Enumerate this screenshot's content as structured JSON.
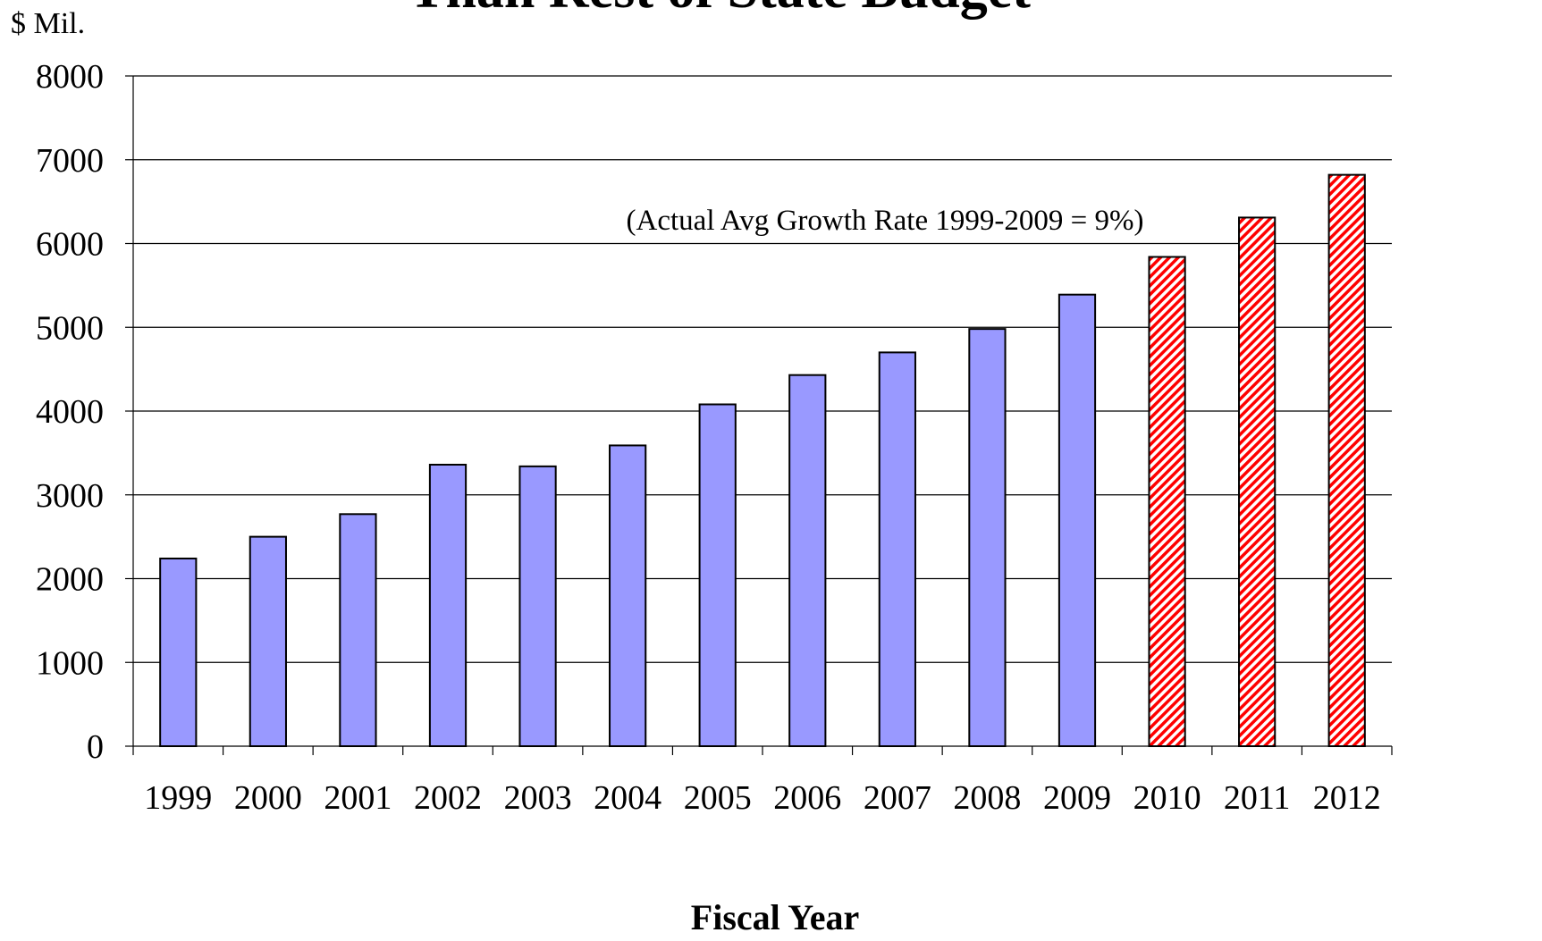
{
  "chart_data": {
    "type": "bar",
    "title": "Than Rest of State Budget",
    "y_unit_label": "$ Mil.",
    "xlabel": "Fiscal Year",
    "ylabel": "",
    "ylim": [
      0,
      8000
    ],
    "y_ticks": [
      0,
      1000,
      2000,
      3000,
      4000,
      5000,
      6000,
      7000,
      8000
    ],
    "grid": true,
    "categories": [
      "1999",
      "2000",
      "2001",
      "2002",
      "2003",
      "2004",
      "2005",
      "2006",
      "2007",
      "2008",
      "2009",
      "2010",
      "2011",
      "2012"
    ],
    "values": [
      2240,
      2500,
      2770,
      3360,
      3340,
      3590,
      4080,
      4430,
      4700,
      4980,
      5390,
      5840,
      6310,
      6820
    ],
    "bar_styles": [
      "actual",
      "actual",
      "actual",
      "actual",
      "actual",
      "actual",
      "actual",
      "actual",
      "actual",
      "actual",
      "actual",
      "projected",
      "projected",
      "projected"
    ],
    "annotation": "(Actual Avg Growth Rate 1999-2009 = 9%)",
    "colors": {
      "actual": "#9999ff",
      "projected_stripe": "#ff0000",
      "projected_bg": "#ffffff",
      "outline": "#000000",
      "grid": "#000000"
    }
  }
}
